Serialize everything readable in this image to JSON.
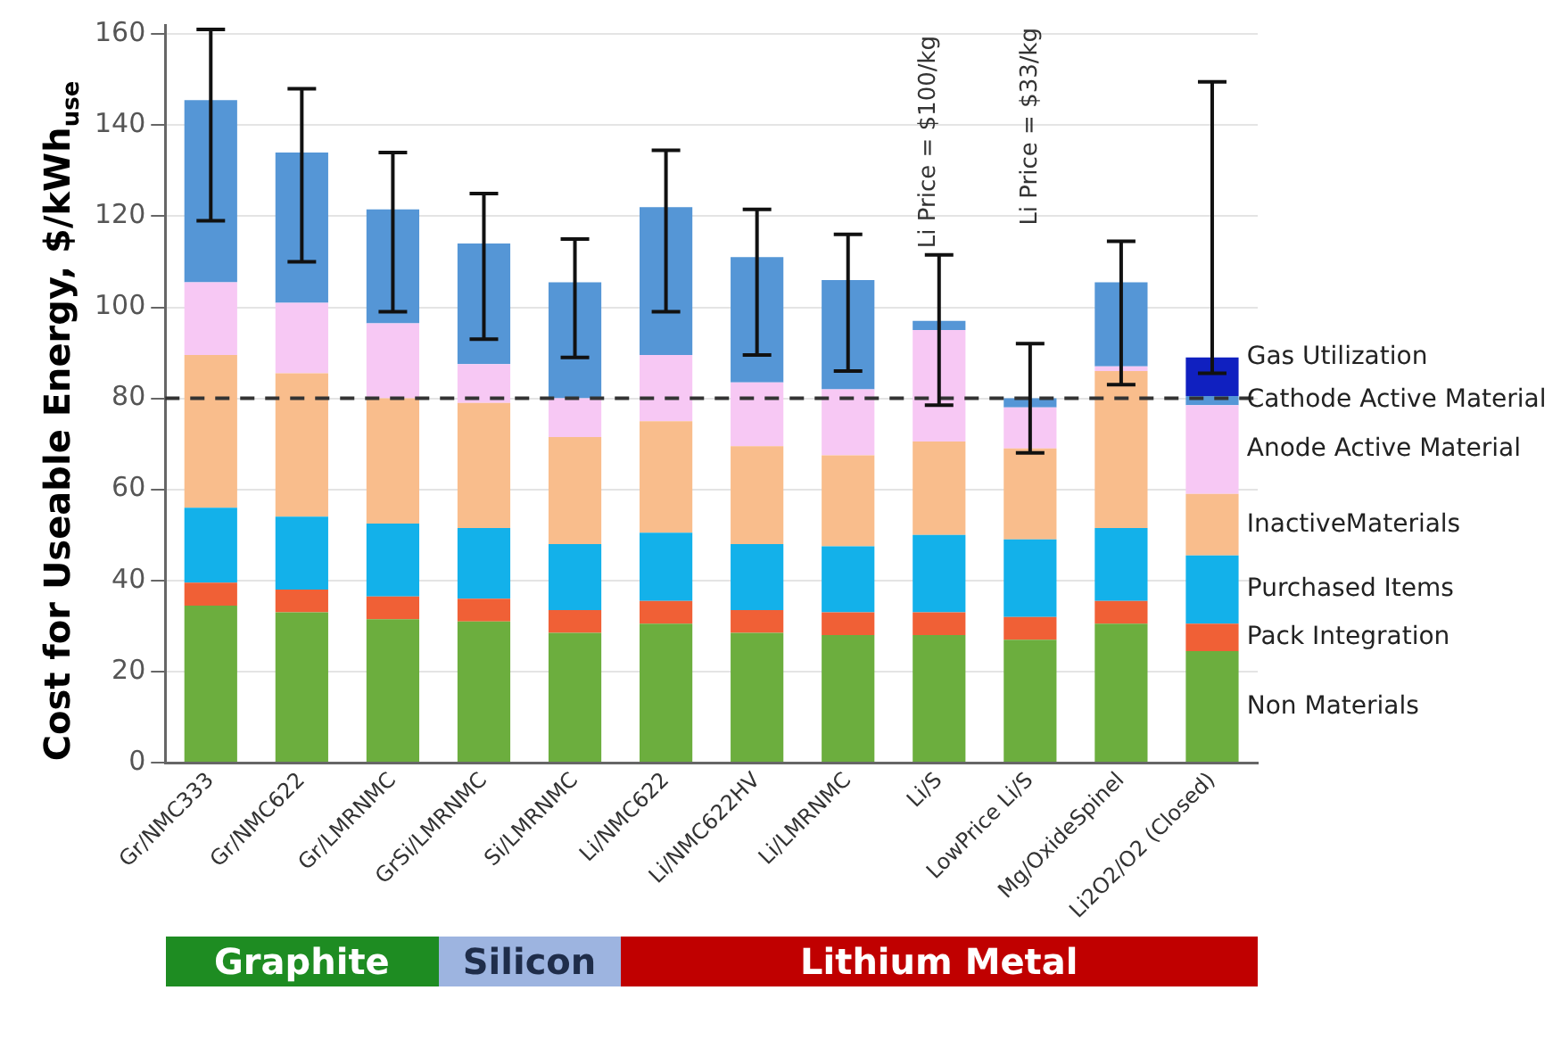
{
  "chart_data": {
    "type": "bar",
    "stacked": true,
    "ylabel": "Cost for Useable Energy, $/kWh$_{use}$",
    "categories": [
      "Gr/NMC333",
      "Gr/NMC622",
      "Gr/LMRNMC",
      "GrSi/LMRNMC",
      "Si/LMRNMC",
      "Li/NMC622",
      "Li/NMC622HV",
      "Li/LMRNMC",
      "Li/S",
      "LowPrice Li/S",
      "Mg/OxideSpinel",
      "Li2O2/O2 (Closed)"
    ],
    "series": [
      {
        "name": "Non Materials",
        "color": "#6cae3e",
        "values": [
          34.5,
          33,
          31.5,
          31,
          28.5,
          30.5,
          28.5,
          28,
          28,
          27,
          30.5,
          24.5
        ]
      },
      {
        "name": "Pack Integration",
        "color": "#f06036",
        "values": [
          5,
          5,
          5,
          5,
          5,
          5,
          5,
          5,
          5,
          5,
          5,
          6
        ]
      },
      {
        "name": "Purchased Items",
        "color": "#13b1ea",
        "values": [
          16.5,
          16,
          16,
          15.5,
          14.5,
          15,
          14.5,
          14.5,
          17,
          17,
          16,
          15
        ]
      },
      {
        "name": "InactiveMaterials",
        "color": "#f9bd8c",
        "values": [
          33.5,
          31.5,
          27.5,
          27.5,
          23.5,
          24.5,
          21.5,
          20,
          20.5,
          20,
          34.5,
          13.5
        ]
      },
      {
        "name": "Anode Active Material",
        "color": "#f7c8f4",
        "values": [
          16,
          15.5,
          16.5,
          8.5,
          8.5,
          14.5,
          14,
          14.5,
          24.5,
          9,
          1,
          19.5
        ]
      },
      {
        "name": "Cathode Active Material",
        "color": "#5596d6",
        "values": [
          40,
          33,
          25,
          26.5,
          25.5,
          32.5,
          27.5,
          24,
          2,
          2,
          18.5,
          2
        ],
        "errors": [
          [
            119,
            161
          ],
          [
            110,
            148
          ],
          [
            99,
            134
          ],
          [
            93,
            125
          ],
          [
            89,
            115
          ],
          [
            99,
            134.5
          ],
          [
            89.5,
            121.5
          ],
          [
            86,
            116
          ],
          [
            78.5,
            111.5
          ],
          [
            68,
            92
          ],
          [
            83,
            114.5
          ],
          null
        ]
      },
      {
        "name": "Gas Utilization",
        "color": "#1020c0",
        "values": [
          null,
          null,
          null,
          null,
          null,
          null,
          null,
          null,
          null,
          null,
          null,
          8.5
        ],
        "errors": [
          null,
          null,
          null,
          null,
          null,
          null,
          null,
          null,
          null,
          null,
          null,
          [
            85.5,
            149.5
          ]
        ]
      }
    ],
    "ylim": [
      0,
      162
    ],
    "yticks": [
      0,
      20,
      40,
      60,
      80,
      100,
      120,
      140,
      160
    ],
    "grid": "y",
    "legend": "right",
    "ref_lines": [
      {
        "axis": "y",
        "value": 80,
        "line_style": "dashed",
        "color": "#333333"
      }
    ],
    "annotations": [
      "Li Price = $100/kg",
      "Li Price = $33/kg",
      "Graphite",
      "Silicon",
      "Lithium Metal"
    ]
  }
}
